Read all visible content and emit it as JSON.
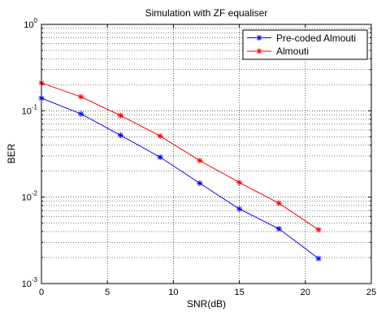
{
  "chart_data": {
    "type": "line",
    "title": "Simulation with ZF equaliser",
    "xlabel": "SNR(dB)",
    "ylabel": "BER",
    "xlim": [
      0,
      25
    ],
    "ylim": [
      0.001,
      1
    ],
    "yscale": "log",
    "grid": true,
    "legend_position": "top-right",
    "x_ticks": [
      "0",
      "5",
      "10",
      "15",
      "20",
      "25"
    ],
    "y_ticks": [
      {
        "base": "10",
        "exp": "0"
      },
      {
        "base": "10",
        "exp": "-1"
      },
      {
        "base": "10",
        "exp": "-2"
      },
      {
        "base": "10",
        "exp": "-3"
      }
    ],
    "x": [
      0,
      3,
      6,
      9,
      12,
      15,
      18,
      21
    ],
    "series": [
      {
        "name": "Pre-coded Almouti",
        "color": "#0000ff",
        "marker": "asterisk",
        "values": [
          0.14,
          0.092,
          0.052,
          0.029,
          0.0145,
          0.0073,
          0.0043,
          0.00195
        ]
      },
      {
        "name": "Almouti",
        "color": "#ff0000",
        "marker": "asterisk",
        "values": [
          0.21,
          0.145,
          0.088,
          0.051,
          0.0265,
          0.0148,
          0.0085,
          0.0042
        ]
      }
    ]
  }
}
